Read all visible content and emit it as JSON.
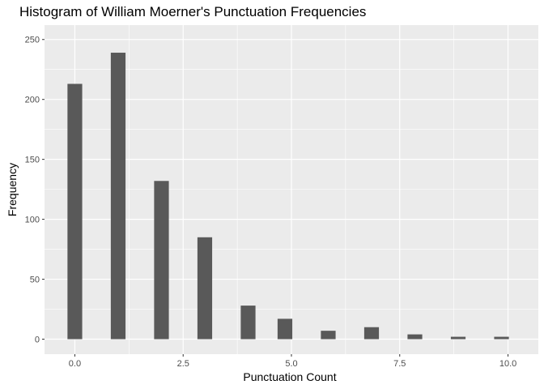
{
  "chart_data": {
    "type": "bar",
    "title": "Histogram of William Moerner's Punctuation Frequencies",
    "xlabel": "Punctuation Count",
    "ylabel": "Frequency",
    "x_ticks": [
      "0.0",
      "2.5",
      "5.0",
      "7.5",
      "10.0"
    ],
    "x_tick_values": [
      0,
      2.5,
      5,
      7.5,
      10
    ],
    "y_ticks": [
      "0",
      "50",
      "100",
      "150",
      "200",
      "250"
    ],
    "y_tick_values": [
      0,
      50,
      100,
      150,
      200,
      250
    ],
    "xlim": [
      -0.7,
      10.7
    ],
    "ylim": [
      -12.5,
      262
    ],
    "bars": [
      {
        "x": 0,
        "value": 213
      },
      {
        "x": 1,
        "value": 239
      },
      {
        "x": 2,
        "value": 132
      },
      {
        "x": 3,
        "value": 85
      },
      {
        "x": 4,
        "value": 28
      },
      {
        "x": 4.85,
        "value": 17
      },
      {
        "x": 5.85,
        "value": 7
      },
      {
        "x": 6.85,
        "value": 10
      },
      {
        "x": 7.85,
        "value": 4
      },
      {
        "x": 8.85,
        "value": 2
      },
      {
        "x": 9.85,
        "value": 2
      }
    ],
    "grid": true,
    "colors": {
      "panel": "#ebebeb",
      "grid": "#ffffff",
      "bar": "#595959"
    }
  }
}
